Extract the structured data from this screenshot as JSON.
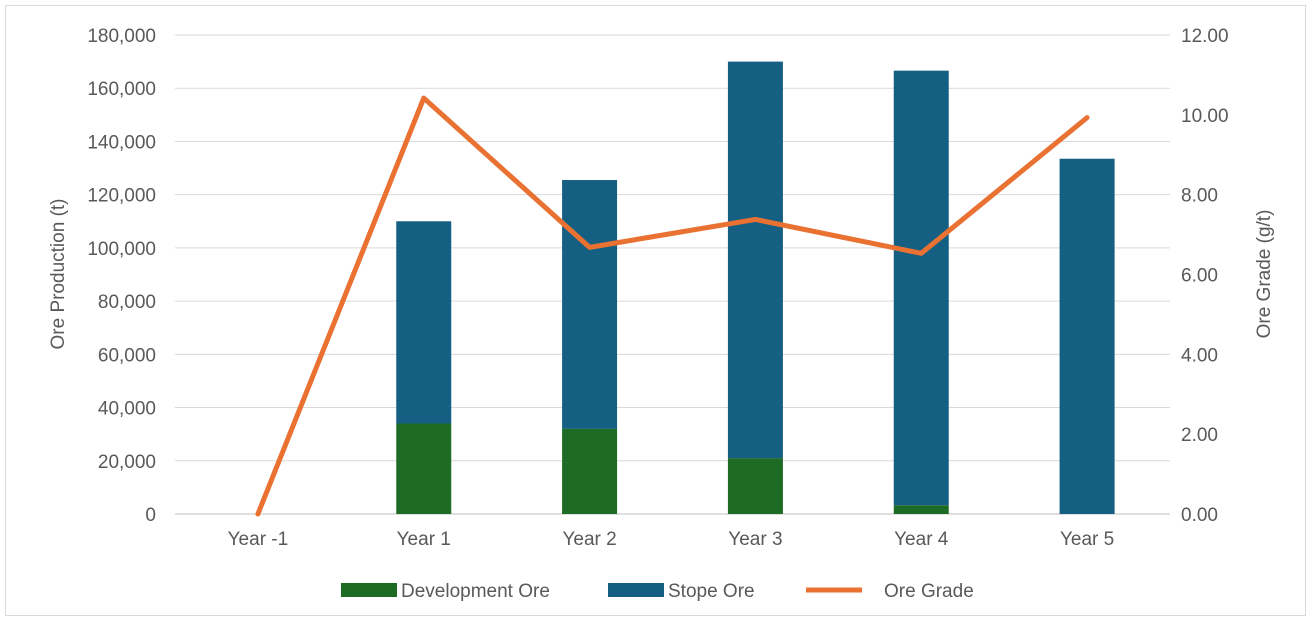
{
  "chart_data": {
    "type": "bar",
    "stacked": true,
    "categories": [
      "Year -1",
      "Year 1",
      "Year 2",
      "Year 3",
      "Year 4",
      "Year 5"
    ],
    "series": [
      {
        "name": "Development Ore",
        "type": "bar",
        "axis": "left",
        "color": "#1e6b25",
        "values": [
          0,
          34000,
          32000,
          21000,
          3300,
          0
        ]
      },
      {
        "name": "Stope Ore",
        "type": "bar",
        "axis": "left",
        "color": "#155f82",
        "values": [
          0,
          76000,
          93500,
          149000,
          163300,
          133500
        ]
      },
      {
        "name": "Ore Grade",
        "type": "line",
        "axis": "right",
        "color": "#e97132",
        "values": [
          0.0,
          10.42,
          6.68,
          7.38,
          6.53,
          9.93
        ]
      }
    ],
    "ylabel": "Ore Production (t)",
    "y2label": "Ore Grade (g/t)",
    "ylim": [
      0,
      180000
    ],
    "yticks": [
      "0",
      "20,000",
      "40,000",
      "60,000",
      "80,000",
      "100,000",
      "120,000",
      "140,000",
      "160,000",
      "180,000"
    ],
    "y2lim": [
      0,
      12
    ],
    "y2ticks": [
      "0.00",
      "2.00",
      "4.00",
      "6.00",
      "8.00",
      "10.00",
      "12.00"
    ],
    "grid": true,
    "legend": "bottom"
  }
}
